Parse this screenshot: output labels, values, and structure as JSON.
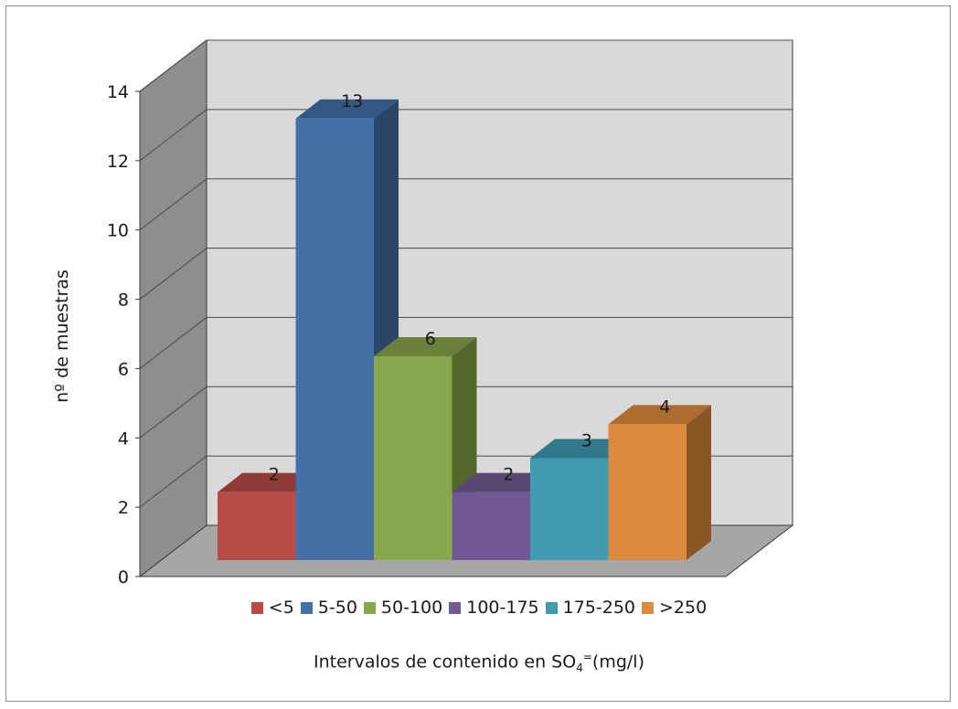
{
  "chart_data": {
    "type": "bar",
    "three_d": true,
    "categories": [
      "<5",
      "5-50",
      "50-100",
      "100-175",
      "175-250",
      ">250"
    ],
    "values": [
      2,
      13,
      6,
      2,
      3,
      4
    ],
    "data_labels": [
      "2",
      "13",
      "6",
      "2",
      "3",
      "4"
    ],
    "colors": [
      "#b84b47",
      "#4470a8",
      "#88a64c",
      "#715a93",
      "#3f9bb1",
      "#de8a3e"
    ],
    "ylabel": "nº de muestras",
    "xlabel_prefix": "Intervalos de contenido en SO",
    "xlabel_subscript": "4",
    "xlabel_superscript": "=",
    "xlabel_suffix": "(mg/l)",
    "ylim": [
      0,
      14
    ],
    "yticks": [
      "0",
      "2",
      "4",
      "6",
      "8",
      "10",
      "12",
      "14"
    ],
    "grid": true,
    "legend_position": "bottom"
  }
}
